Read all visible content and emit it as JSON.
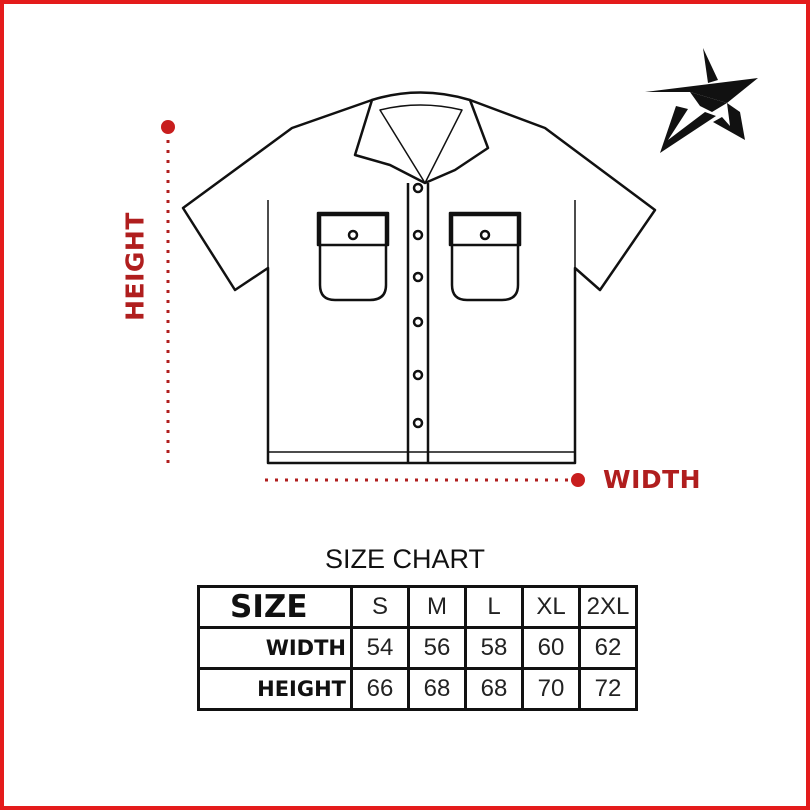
{
  "labels": {
    "height": "HEIGHT",
    "width": "WIDTH"
  },
  "chart_title": "SIZE CHART",
  "table": {
    "header_label": "SIZE",
    "sizes": [
      "S",
      "M",
      "L",
      "XL",
      "2XL"
    ],
    "rows": [
      {
        "label": "WIDTH",
        "values": [
          "54",
          "56",
          "58",
          "60",
          "62"
        ]
      },
      {
        "label": "HEIGHT",
        "values": [
          "66",
          "68",
          "68",
          "70",
          "72"
        ]
      }
    ]
  },
  "colors": {
    "accent": "#b01e1e",
    "border": "#e41b1b"
  },
  "logo": {
    "icon": "star-logo-icon"
  }
}
